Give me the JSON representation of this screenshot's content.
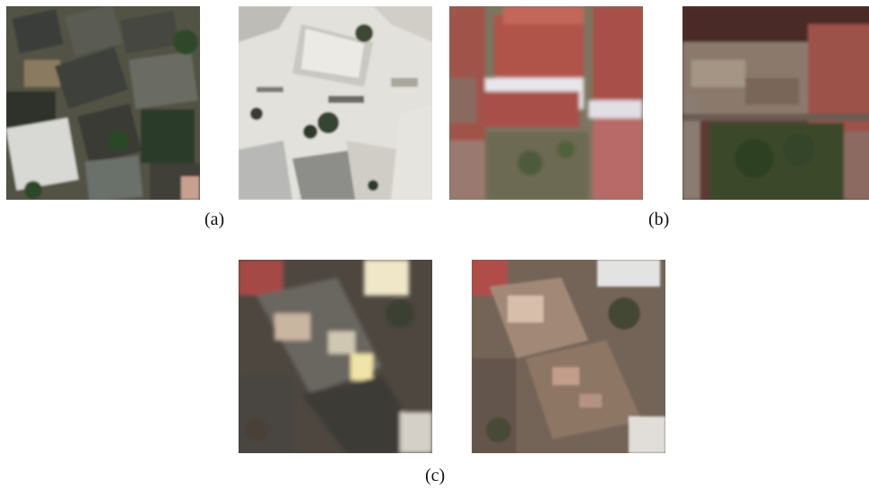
{
  "figure": {
    "caption_a": "(a)",
    "caption_b": "(b)",
    "caption_c": "(c)"
  }
}
